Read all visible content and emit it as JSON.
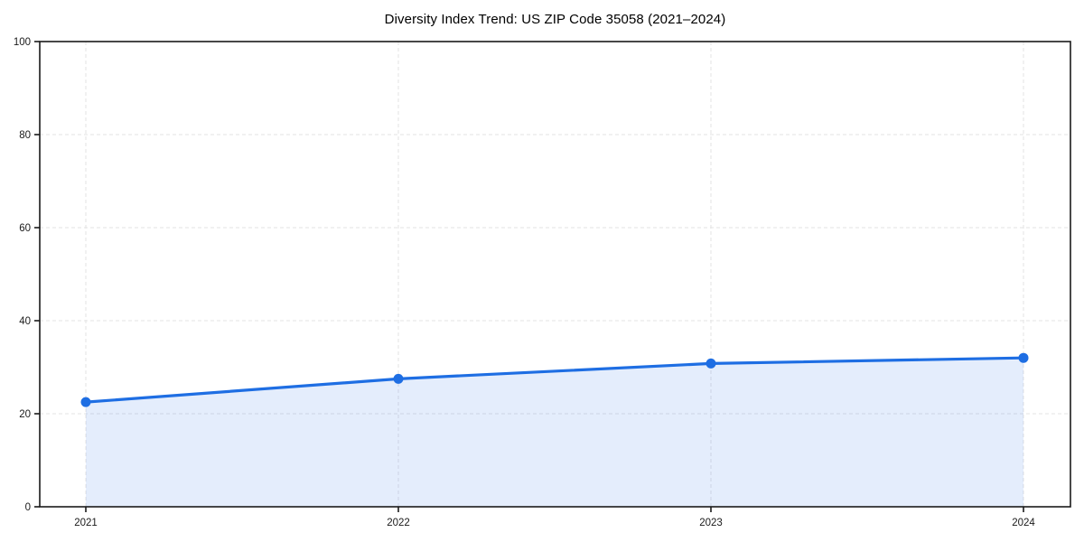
{
  "chart_data": {
    "type": "area",
    "title": "Diversity Index Trend: US ZIP Code 35058 (2021–2024)",
    "categories": [
      "2021",
      "2022",
      "2023",
      "2024"
    ],
    "values": [
      22.5,
      27.5,
      30.8,
      32.0
    ],
    "xlabel": "",
    "ylabel": "",
    "ylim": [
      0,
      100
    ],
    "yticks": [
      0,
      20,
      40,
      60,
      80,
      100
    ],
    "grid": "dashed-both-axes",
    "legend": "none",
    "colors": {
      "line": "#1e6ee3",
      "marker": "#1e6ee3",
      "area_fill_rgba": "rgba(30, 110, 227, 0.12)",
      "gridline": "#e3e3e3",
      "axis": "#1a1a1a",
      "tick_label": "#1a1a1a",
      "title": "#000000",
      "background": "#ffffff"
    }
  }
}
